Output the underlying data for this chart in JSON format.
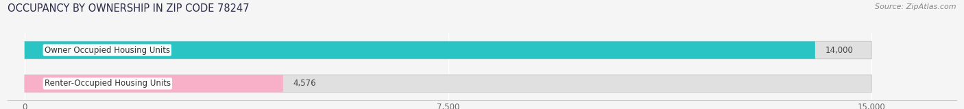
{
  "title": "OCCUPANCY BY OWNERSHIP IN ZIP CODE 78247",
  "source": "Source: ZipAtlas.com",
  "categories": [
    "Owner Occupied Housing Units",
    "Renter-Occupied Housing Units"
  ],
  "values": [
    14000,
    4576
  ],
  "bar_colors": [
    "#2bc4c4",
    "#f8afc8"
  ],
  "xlim_max": 15000,
  "xticks": [
    0,
    7500,
    15000
  ],
  "xtick_labels": [
    "0",
    "7,500",
    "15,000"
  ],
  "value_labels": [
    "14,000",
    "4,576"
  ],
  "bar_height": 0.52,
  "background_color": "#f5f5f5",
  "bar_bg_color": "#e0e0e0",
  "title_fontsize": 10.5,
  "label_fontsize": 8.5,
  "value_fontsize": 8.5,
  "tick_fontsize": 8.5,
  "source_fontsize": 8
}
